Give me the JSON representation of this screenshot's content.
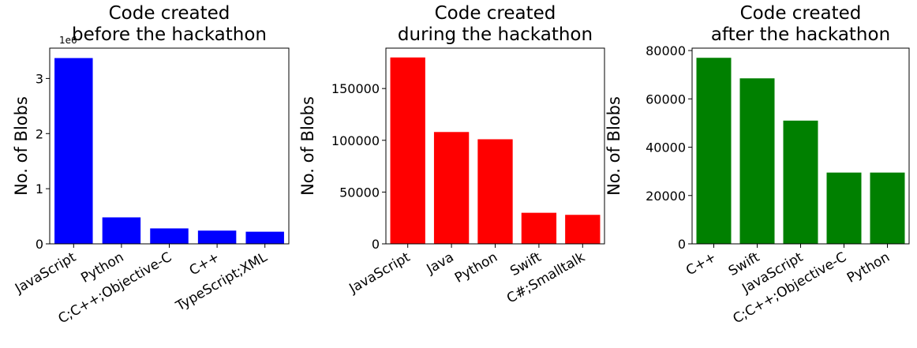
{
  "chart_data": [
    {
      "type": "bar",
      "title_lines": [
        "Code created",
        "before the hackathon"
      ],
      "ylabel": "No. of Blobs",
      "color": "#0000ff",
      "categories": [
        "JavaScript",
        "Python",
        "C;C++;Objective-C",
        "C++",
        "TypeScript;XML"
      ],
      "values": [
        3.37,
        0.48,
        0.28,
        0.24,
        0.22
      ],
      "ylim": [
        0,
        3.55
      ],
      "yticks": [
        0,
        1,
        2,
        3
      ],
      "ytick_labels": [
        "0",
        "1",
        "2",
        "3"
      ],
      "offset_text": "1e6",
      "grid": false
    },
    {
      "type": "bar",
      "title_lines": [
        "Code created",
        "during the hackathon"
      ],
      "ylabel": "No. of Blobs",
      "color": "#ff0000",
      "categories": [
        "JavaScript",
        "Java",
        "Python",
        "Swift",
        "C#;Smalltalk"
      ],
      "values": [
        180000,
        108000,
        101000,
        30000,
        28000
      ],
      "ylim": [
        0,
        189000
      ],
      "yticks": [
        0,
        50000,
        100000,
        150000
      ],
      "ytick_labels": [
        "0",
        "50000",
        "100000",
        "150000"
      ],
      "grid": false
    },
    {
      "type": "bar",
      "title_lines": [
        "Code created",
        "after the hackathon"
      ],
      "ylabel": "No. of Blobs",
      "color": "#008000",
      "categories": [
        "C++",
        "Swift",
        "JavaScript",
        "C;C++;Objective-C",
        "Python"
      ],
      "values": [
        77000,
        68500,
        51000,
        29500,
        29500
      ],
      "ylim": [
        0,
        81000
      ],
      "yticks": [
        0,
        20000,
        40000,
        60000,
        80000
      ],
      "ytick_labels": [
        "0",
        "20000",
        "40000",
        "60000",
        "80000"
      ],
      "grid": false
    }
  ]
}
